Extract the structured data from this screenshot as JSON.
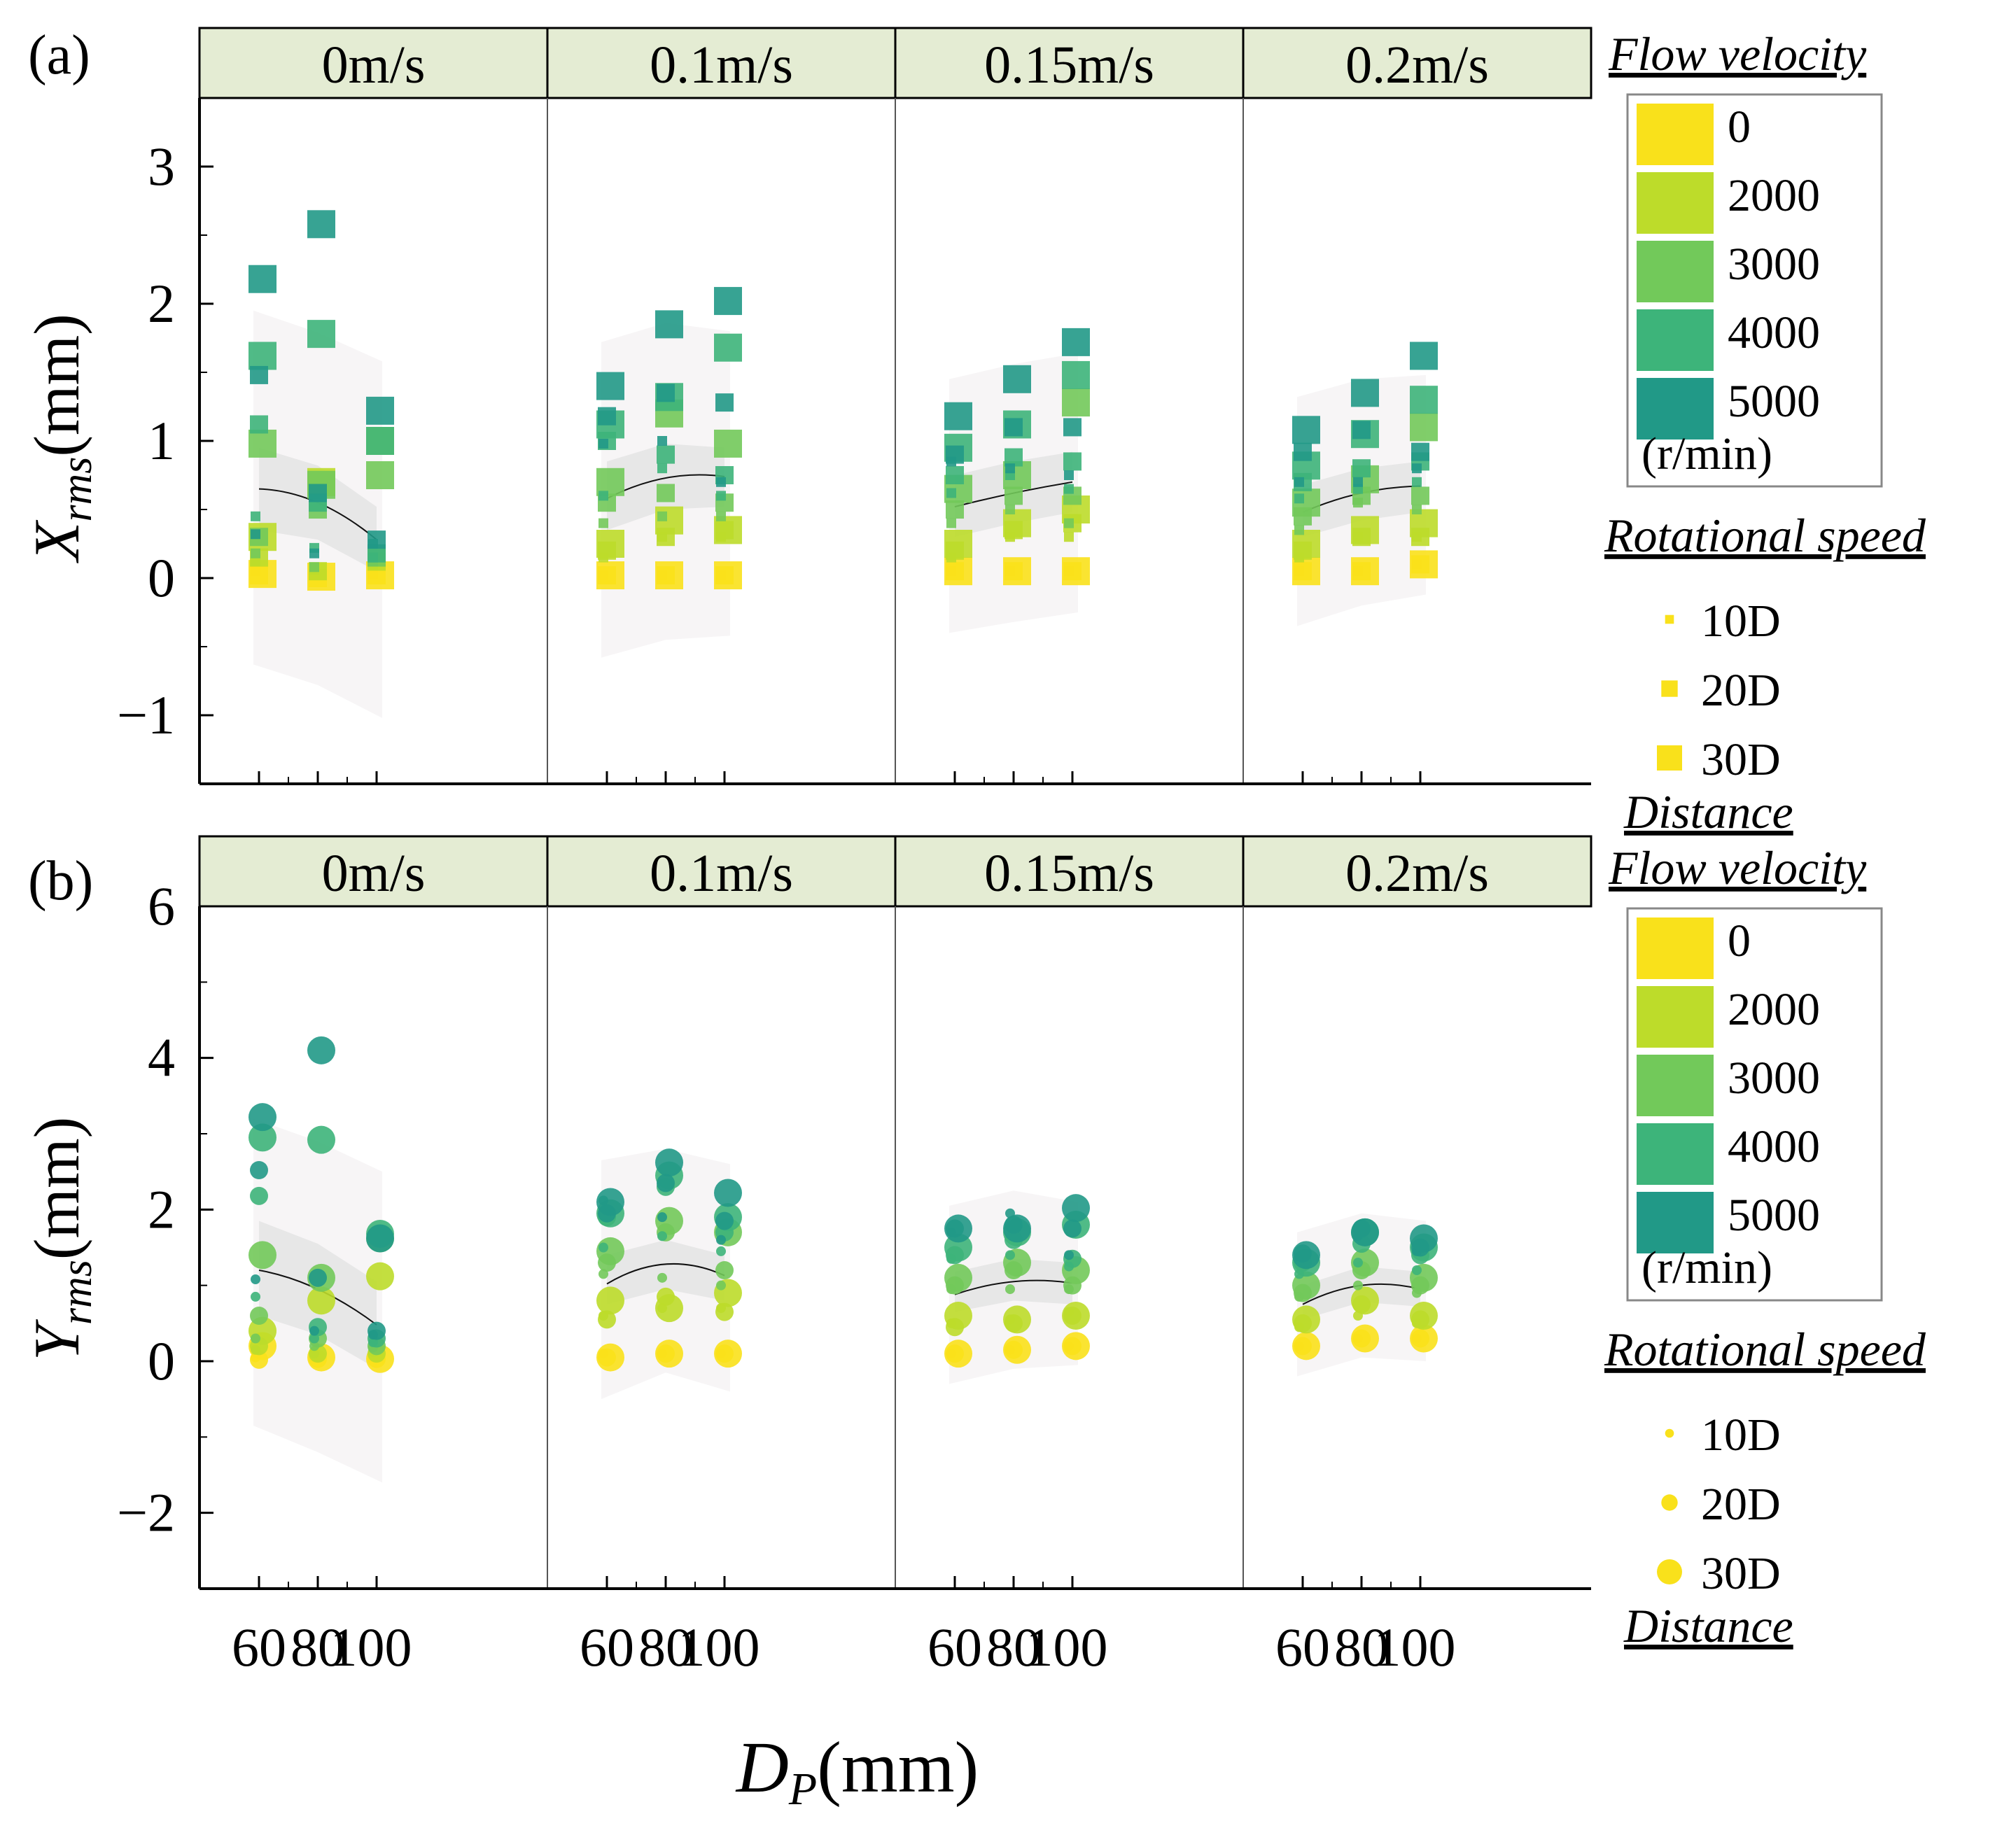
{
  "figure": {
    "x_axis_label_main": "D",
    "x_axis_label_sub": "P",
    "x_axis_label_unit": "(mm)"
  },
  "legend": {
    "flow_velocity_title": "Flow velocity",
    "speed_values": [
      "0",
      "2000",
      "3000",
      "4000",
      "5000"
    ],
    "speed_unit": "(r/min)",
    "rotational_speed_title": "Rotational speed",
    "distance_labels": [
      "10D",
      "20D",
      "30D"
    ],
    "distance_title": "Distance"
  },
  "colors": {
    "speeds": [
      "#f9e11b",
      "#bddc2a",
      "#72c95a",
      "#3db47a",
      "#219987"
    ],
    "strip": "#e4ecd3",
    "band_outer": "#f7f5f6",
    "band_inner": "#e2e2e2",
    "fit_line": "#111111"
  },
  "chart_data": [
    {
      "type": "scatter",
      "panel_label": "(a)",
      "ylabel_main": "X",
      "ylabel_sub": "rms",
      "ylabel_unit": "(mm)",
      "marker": "square",
      "ylim": [
        -1.5,
        3.5
      ],
      "yticks": [
        -1,
        0,
        1,
        2,
        3
      ],
      "ytick_labels": [
        "−1",
        "0",
        "1",
        "2",
        "3"
      ],
      "x_categories": [
        60,
        80,
        100
      ],
      "xtick_labels": [
        "60",
        "80",
        "100"
      ],
      "facets": [
        {
          "label": "0m/s",
          "fit": [
            0.65,
            0.55,
            0.28
          ],
          "band_outer": [
            [
              -0.63,
              1.95
            ],
            [
              -0.78,
              1.79
            ],
            [
              -1.02,
              1.58
            ]
          ],
          "band_inner": [
            [
              0.35,
              0.95
            ],
            [
              0.28,
              0.82
            ],
            [
              0.05,
              0.52
            ]
          ],
          "points": [
            [
              0.05,
              0.02,
              0.03,
              0.02,
              0.0,
              0.01,
              0.03,
              0.02,
              0.02
            ],
            [
              0.12,
              0.15,
              0.3,
              0.06,
              0.05,
              0.7,
              0.1,
              0.12,
              1.0
            ],
            [
              0.18,
              0.3,
              0.98,
              0.08,
              0.5,
              0.68,
              0.12,
              0.15,
              0.75
            ],
            [
              0.45,
              1.12,
              1.62,
              0.22,
              0.55,
              1.78,
              0.15,
              0.18,
              1.0
            ],
            [
              0.32,
              1.48,
              2.18,
              0.18,
              0.62,
              2.58,
              0.25,
              0.28,
              1.22
            ]
          ]
        },
        {
          "label": "0.1m/s",
          "fit": [
            0.58,
            0.73,
            0.74
          ],
          "band_outer": [
            [
              -0.58,
              1.72
            ],
            [
              -0.45,
              1.86
            ],
            [
              -0.42,
              1.8
            ]
          ],
          "band_inner": [
            [
              0.35,
              0.85
            ],
            [
              0.5,
              0.98
            ],
            [
              0.52,
              0.95
            ]
          ],
          "points": [
            [
              0.02,
              0.02,
              0.02,
              0.02,
              0.02,
              0.02,
              0.02,
              0.02,
              0.02
            ],
            [
              0.15,
              0.2,
              0.25,
              0.3,
              0.3,
              0.42,
              0.3,
              0.35,
              0.35
            ],
            [
              0.4,
              0.55,
              0.7,
              0.45,
              0.62,
              1.2,
              0.45,
              0.55,
              0.98
            ],
            [
              0.6,
              1.0,
              1.12,
              0.8,
              0.9,
              1.32,
              0.6,
              0.75,
              1.68
            ],
            [
              0.98,
              1.18,
              1.4,
              1.0,
              1.35,
              1.85,
              0.7,
              1.28,
              2.02
            ]
          ]
        },
        {
          "label": "0.15m/s",
          "fit": [
            0.52,
            0.62,
            0.7
          ],
          "band_outer": [
            [
              -0.4,
              1.45
            ],
            [
              -0.32,
              1.56
            ],
            [
              -0.25,
              1.64
            ]
          ],
          "band_inner": [
            [
              0.3,
              0.75
            ],
            [
              0.4,
              0.85
            ],
            [
              0.48,
              0.92
            ]
          ],
          "points": [
            [
              0.05,
              0.05,
              0.05,
              0.05,
              0.05,
              0.05,
              0.05,
              0.05,
              0.05
            ],
            [
              0.15,
              0.2,
              0.25,
              0.3,
              0.35,
              0.4,
              0.3,
              0.4,
              0.5
            ],
            [
              0.4,
              0.5,
              0.65,
              0.5,
              0.6,
              0.75,
              0.4,
              0.6,
              1.28
            ],
            [
              0.62,
              0.75,
              0.95,
              0.75,
              0.88,
              1.12,
              0.65,
              0.85,
              1.48
            ],
            [
              0.85,
              0.9,
              1.18,
              0.8,
              1.1,
              1.45,
              0.75,
              1.1,
              1.72
            ]
          ]
        },
        {
          "label": "0.2m/s",
          "fit": [
            0.48,
            0.62,
            0.67
          ],
          "band_outer": [
            [
              -0.35,
              1.32
            ],
            [
              -0.2,
              1.45
            ],
            [
              -0.12,
              1.48
            ]
          ],
          "band_inner": [
            [
              0.3,
              0.68
            ],
            [
              0.42,
              0.8
            ],
            [
              0.48,
              0.85
            ]
          ],
          "points": [
            [
              0.05,
              0.05,
              0.05,
              0.05,
              0.05,
              0.05,
              0.1,
              0.1,
              0.1
            ],
            [
              0.15,
              0.2,
              0.25,
              0.3,
              0.3,
              0.35,
              0.3,
              0.3,
              0.4
            ],
            [
              0.35,
              0.45,
              0.55,
              0.55,
              0.6,
              0.72,
              0.5,
              0.6,
              1.1
            ],
            [
              0.58,
              0.7,
              0.82,
              0.65,
              0.8,
              1.05,
              0.7,
              0.85,
              1.3
            ],
            [
              0.7,
              0.92,
              1.08,
              0.7,
              1.08,
              1.35,
              0.8,
              0.92,
              1.62
            ]
          ]
        }
      ]
    },
    {
      "type": "scatter",
      "panel_label": "(b)",
      "ylabel_main": "Y",
      "ylabel_sub": "rms",
      "ylabel_unit": "(mm)",
      "marker": "circle",
      "ylim": [
        -3,
        6
      ],
      "yticks": [
        -2,
        0,
        2,
        4,
        6
      ],
      "ytick_labels": [
        "−2",
        "0",
        "2",
        "4",
        "6"
      ],
      "x_categories": [
        60,
        80,
        100
      ],
      "xtick_labels": [
        "60",
        "80",
        "100"
      ],
      "facets": [
        {
          "label": "0m/s",
          "fit": [
            1.2,
            0.95,
            0.48
          ],
          "band_outer": [
            [
              -0.85,
              3.2
            ],
            [
              -1.2,
              2.9
            ],
            [
              -1.6,
              2.5
            ]
          ],
          "band_inner": [
            [
              0.6,
              1.85
            ],
            [
              0.35,
              1.55
            ],
            [
              -0.1,
              1.05
            ]
          ],
          "points": [
            [
              0.05,
              0.02,
              0.2,
              0.05,
              0.03,
              0.05,
              0.05,
              0.03,
              0.03
            ],
            [
              0.15,
              0.2,
              0.4,
              0.1,
              0.1,
              0.8,
              0.12,
              0.1,
              1.12
            ],
            [
              0.3,
              0.6,
              1.4,
              0.2,
              0.3,
              1.1,
              0.18,
              0.2,
              1.62
            ],
            [
              0.85,
              2.18,
              2.95,
              0.3,
              0.45,
              2.92,
              0.25,
              0.3,
              1.68
            ],
            [
              1.08,
              2.52,
              3.22,
              0.4,
              1.1,
              4.1,
              0.35,
              0.4,
              1.62
            ]
          ]
        },
        {
          "label": "0.1m/s",
          "fit": [
            1.02,
            1.28,
            1.13
          ],
          "band_outer": [
            [
              -0.5,
              2.65
            ],
            [
              -0.15,
              2.8
            ],
            [
              -0.4,
              2.6
            ]
          ],
          "band_inner": [
            [
              0.75,
              1.4
            ],
            [
              0.95,
              1.6
            ],
            [
              0.8,
              1.4
            ]
          ],
          "points": [
            [
              0.1,
              0.05,
              0.05,
              0.1,
              0.1,
              0.1,
              0.1,
              0.1,
              0.1
            ],
            [
              0.6,
              0.55,
              0.8,
              0.7,
              0.85,
              0.7,
              0.7,
              0.65,
              0.9
            ],
            [
              1.15,
              1.3,
              1.45,
              1.1,
              1.7,
              1.85,
              1.0,
              1.2,
              1.7
            ],
            [
              1.5,
              1.9,
              1.95,
              1.65,
              2.3,
              2.45,
              1.45,
              1.7,
              1.9
            ],
            [
              2.12,
              1.95,
              2.1,
              1.9,
              2.35,
              2.62,
              1.6,
              1.85,
              2.22
            ]
          ]
        },
        {
          "label": "0.15m/s",
          "fit": [
            0.88,
            1.05,
            1.03
          ],
          "band_outer": [
            [
              -0.3,
              2.05
            ],
            [
              -0.1,
              2.25
            ],
            [
              -0.05,
              2.1
            ]
          ],
          "band_inner": [
            [
              0.65,
              1.18
            ],
            [
              0.8,
              1.35
            ],
            [
              0.75,
              1.3
            ]
          ],
          "points": [
            [
              0.1,
              0.1,
              0.1,
              0.15,
              0.15,
              0.15,
              0.2,
              0.2,
              0.2
            ],
            [
              0.5,
              0.45,
              0.6,
              0.55,
              0.5,
              0.55,
              0.65,
              0.6,
              0.6
            ],
            [
              0.95,
              1.0,
              1.1,
              0.95,
              1.2,
              1.3,
              0.95,
              1.0,
              1.2
            ],
            [
              1.35,
              1.4,
              1.5,
              1.4,
              1.6,
              1.7,
              1.25,
              1.35,
              1.8
            ],
            [
              1.7,
              1.75,
              1.75,
              1.95,
              1.8,
              1.75,
              1.4,
              1.75,
              2.02
            ]
          ]
        },
        {
          "label": "0.2m/s",
          "fit": [
            0.75,
            1.0,
            0.95
          ],
          "band_outer": [
            [
              -0.2,
              1.7
            ],
            [
              0.05,
              1.95
            ],
            [
              0.0,
              1.85
            ]
          ],
          "band_inner": [
            [
              0.55,
              1.0
            ],
            [
              0.78,
              1.25
            ],
            [
              0.72,
              1.18
            ]
          ],
          "points": [
            [
              0.2,
              0.2,
              0.2,
              0.3,
              0.3,
              0.3,
              0.3,
              0.3,
              0.3
            ],
            [
              0.45,
              0.5,
              0.55,
              0.6,
              0.75,
              0.8,
              0.5,
              0.55,
              0.6
            ],
            [
              0.85,
              0.9,
              1.0,
              1.0,
              1.2,
              1.3,
              0.9,
              1.0,
              1.1
            ],
            [
              1.15,
              1.3,
              1.3,
              1.3,
              1.55,
              1.7,
              1.2,
              1.4,
              1.5
            ],
            [
              1.38,
              1.42,
              1.4,
              1.65,
              1.75,
              1.7,
              1.45,
              1.5,
              1.62
            ]
          ]
        }
      ]
    }
  ]
}
